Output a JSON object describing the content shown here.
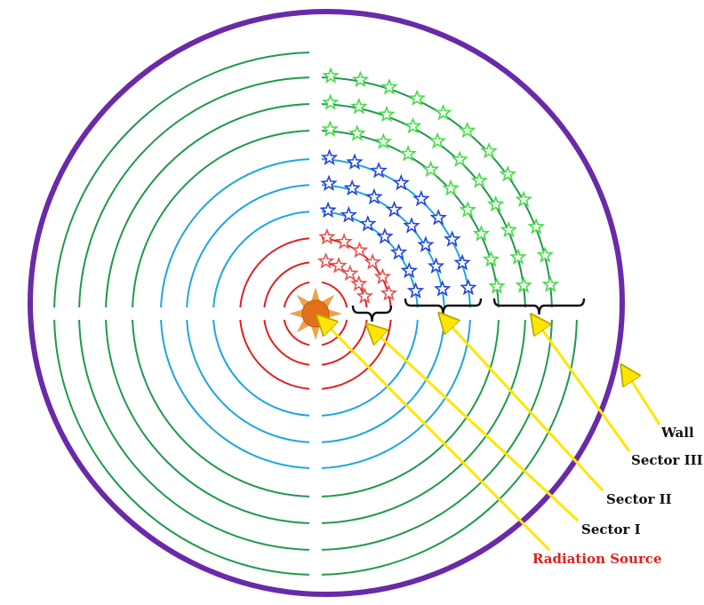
{
  "labels": {
    "wall": "Wall",
    "sector3": "Sector III",
    "sector2": "Sector II",
    "sector1": "Sector I",
    "source": "Radiation Source"
  },
  "colors": {
    "wall": "#6a2aa8",
    "red_arc": "#e02020",
    "blue_arc": "#1ea6e0",
    "green_arc": "#1f9a4c",
    "red_star": "#e85050",
    "blue_star": "#2244dd",
    "green_star": "#44dd44",
    "arrow": "#ffe600",
    "arrow_edge": "#b8a800",
    "label_text": "#111111",
    "source_label": "#e02020",
    "source_fill": "#e0701a"
  },
  "icons": {
    "source": "sun-icon",
    "particle": "star-icon"
  },
  "rings": [
    {
      "sector": "I",
      "color": "red",
      "count": 2
    },
    {
      "sector": "II",
      "color": "blue",
      "count": 3
    },
    {
      "sector": "III",
      "color": "green",
      "count": 3
    }
  ]
}
